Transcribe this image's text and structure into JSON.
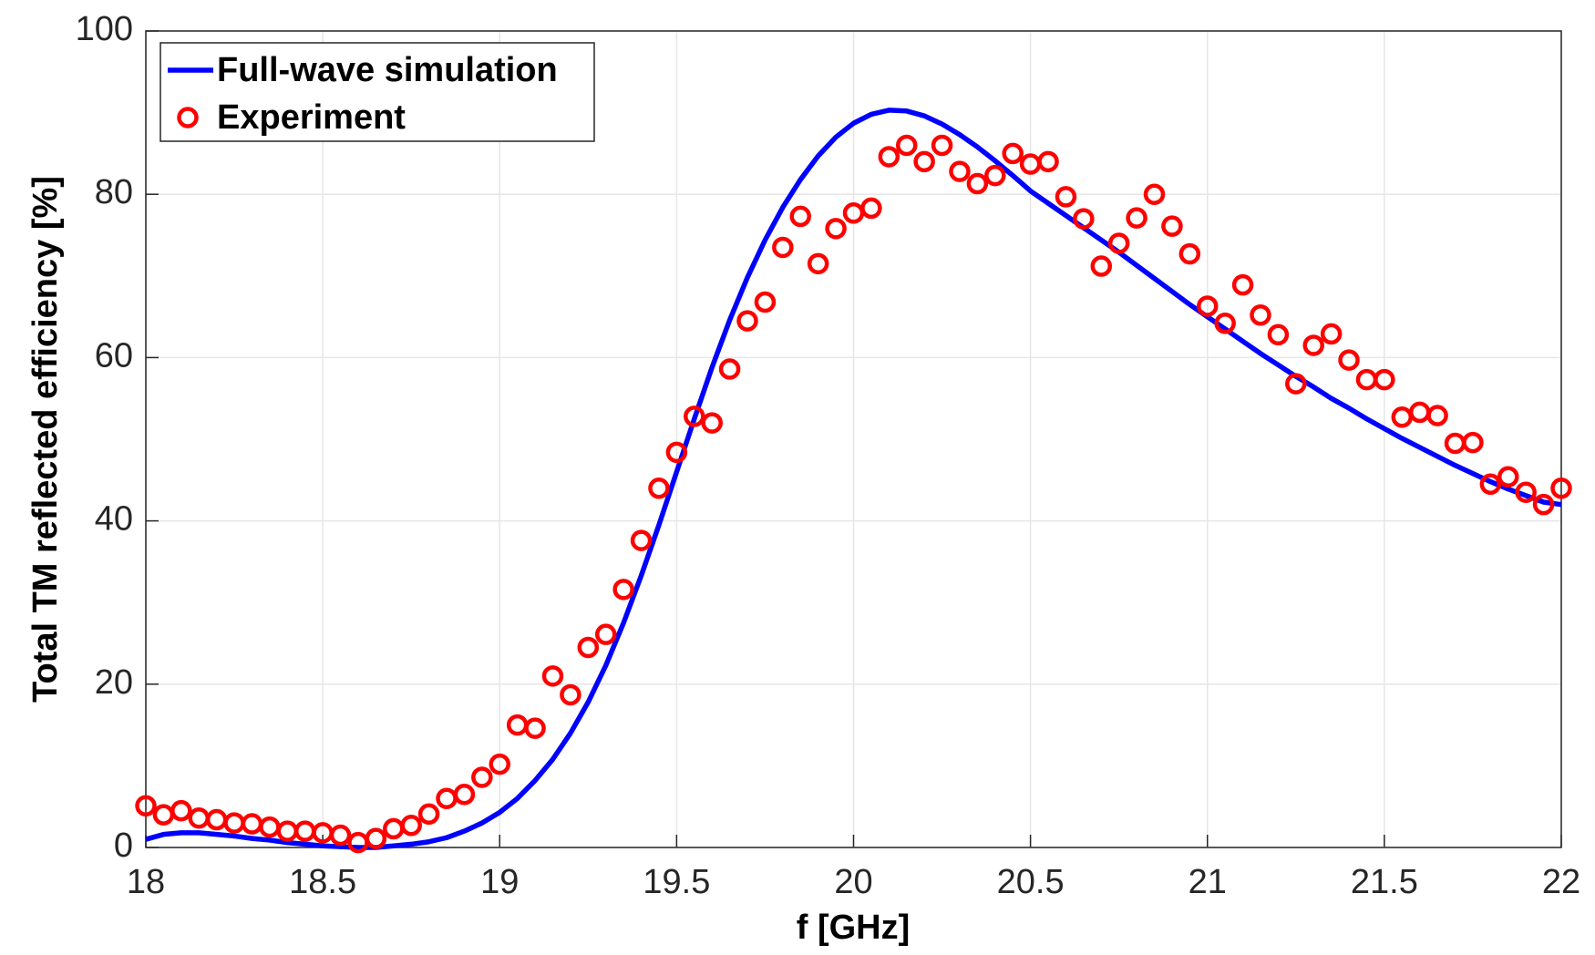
{
  "chart_data": {
    "type": "line",
    "xlabel": "f [GHz]",
    "ylabel": "Total TM reflected efficiency [%]",
    "x": [
      18,
      18.05,
      18.1,
      18.15,
      18.2,
      18.25,
      18.3,
      18.35,
      18.4,
      18.45,
      18.5,
      18.55,
      18.6,
      18.65,
      18.7,
      18.75,
      18.8,
      18.85,
      18.9,
      18.95,
      19,
      19.05,
      19.1,
      19.15,
      19.2,
      19.25,
      19.3,
      19.35,
      19.4,
      19.45,
      19.5,
      19.55,
      19.6,
      19.65,
      19.7,
      19.75,
      19.8,
      19.85,
      19.9,
      19.95,
      20,
      20.05,
      20.1,
      20.15,
      20.2,
      20.25,
      20.3,
      20.35,
      20.4,
      20.45,
      20.5,
      20.55,
      20.6,
      20.65,
      20.7,
      20.75,
      20.8,
      20.85,
      20.9,
      20.95,
      21,
      21.05,
      21.1,
      21.15,
      21.2,
      21.25,
      21.3,
      21.35,
      21.4,
      21.45,
      21.5,
      21.55,
      21.6,
      21.65,
      21.7,
      21.75,
      21.8,
      21.85,
      21.9,
      21.95,
      22
    ],
    "series": [
      {
        "name": "Full-wave simulation",
        "color": "#0000ff",
        "marker": "none",
        "values": [
          1.0,
          1.6,
          1.8,
          1.8,
          1.6,
          1.4,
          1.1,
          0.9,
          0.6,
          0.4,
          0.2,
          0.1,
          0.0,
          0.0,
          0.2,
          0.4,
          0.7,
          1.2,
          2.0,
          3.0,
          4.3,
          6.0,
          8.2,
          10.8,
          14.0,
          17.8,
          22.3,
          27.5,
          33.3,
          39.5,
          46.0,
          52.5,
          58.8,
          64.6,
          69.8,
          74.4,
          78.4,
          81.8,
          84.7,
          87.0,
          88.7,
          89.8,
          90.3,
          90.2,
          89.6,
          88.6,
          87.3,
          85.8,
          84.1,
          82.3,
          80.4,
          78.9,
          77.4,
          75.9,
          74.4,
          72.9,
          71.3,
          69.7,
          68.1,
          66.5,
          65.0,
          63.5,
          62.0,
          60.5,
          59.1,
          57.7,
          56.4,
          55.0,
          53.8,
          52.5,
          51.3,
          50.1,
          49.0,
          47.9,
          46.8,
          45.8,
          44.8,
          43.9,
          43.1,
          42.3,
          42.0
        ]
      },
      {
        "name": "Experiment",
        "color": "#ff0000",
        "marker": "circle",
        "values": [
          5.1,
          4.0,
          4.5,
          3.6,
          3.4,
          3.0,
          2.9,
          2.5,
          2.0,
          2.0,
          1.8,
          1.5,
          0.6,
          1.1,
          2.3,
          2.7,
          4.1,
          6.0,
          6.5,
          8.6,
          10.2,
          15.0,
          14.6,
          21.0,
          18.7,
          24.5,
          26.1,
          31.6,
          37.6,
          44.0,
          48.4,
          52.8,
          52.0,
          58.6,
          64.5,
          66.8,
          73.5,
          77.3,
          71.5,
          75.8,
          77.7,
          78.3,
          84.6,
          86.0,
          84.0,
          86.0,
          82.8,
          81.3,
          82.3,
          85.0,
          83.7,
          84.0,
          79.7,
          77.0,
          71.2,
          74.0,
          77.1,
          80.0,
          76.1,
          72.7,
          66.3,
          64.2,
          68.9,
          65.2,
          62.8,
          56.8,
          61.5,
          62.9,
          59.7,
          57.3,
          57.3,
          52.7,
          53.3,
          52.9,
          49.5,
          49.6,
          44.5,
          45.4,
          43.5,
          42.0,
          44.0
        ]
      }
    ],
    "xlim": [
      18,
      22
    ],
    "xticks": [
      18,
      18.5,
      19,
      19.5,
      20,
      20.5,
      21,
      21.5,
      22
    ],
    "ylim": [
      0,
      100
    ],
    "yticks": [
      0,
      20,
      40,
      60,
      80,
      100
    ],
    "grid": true,
    "legend": "upper left"
  }
}
